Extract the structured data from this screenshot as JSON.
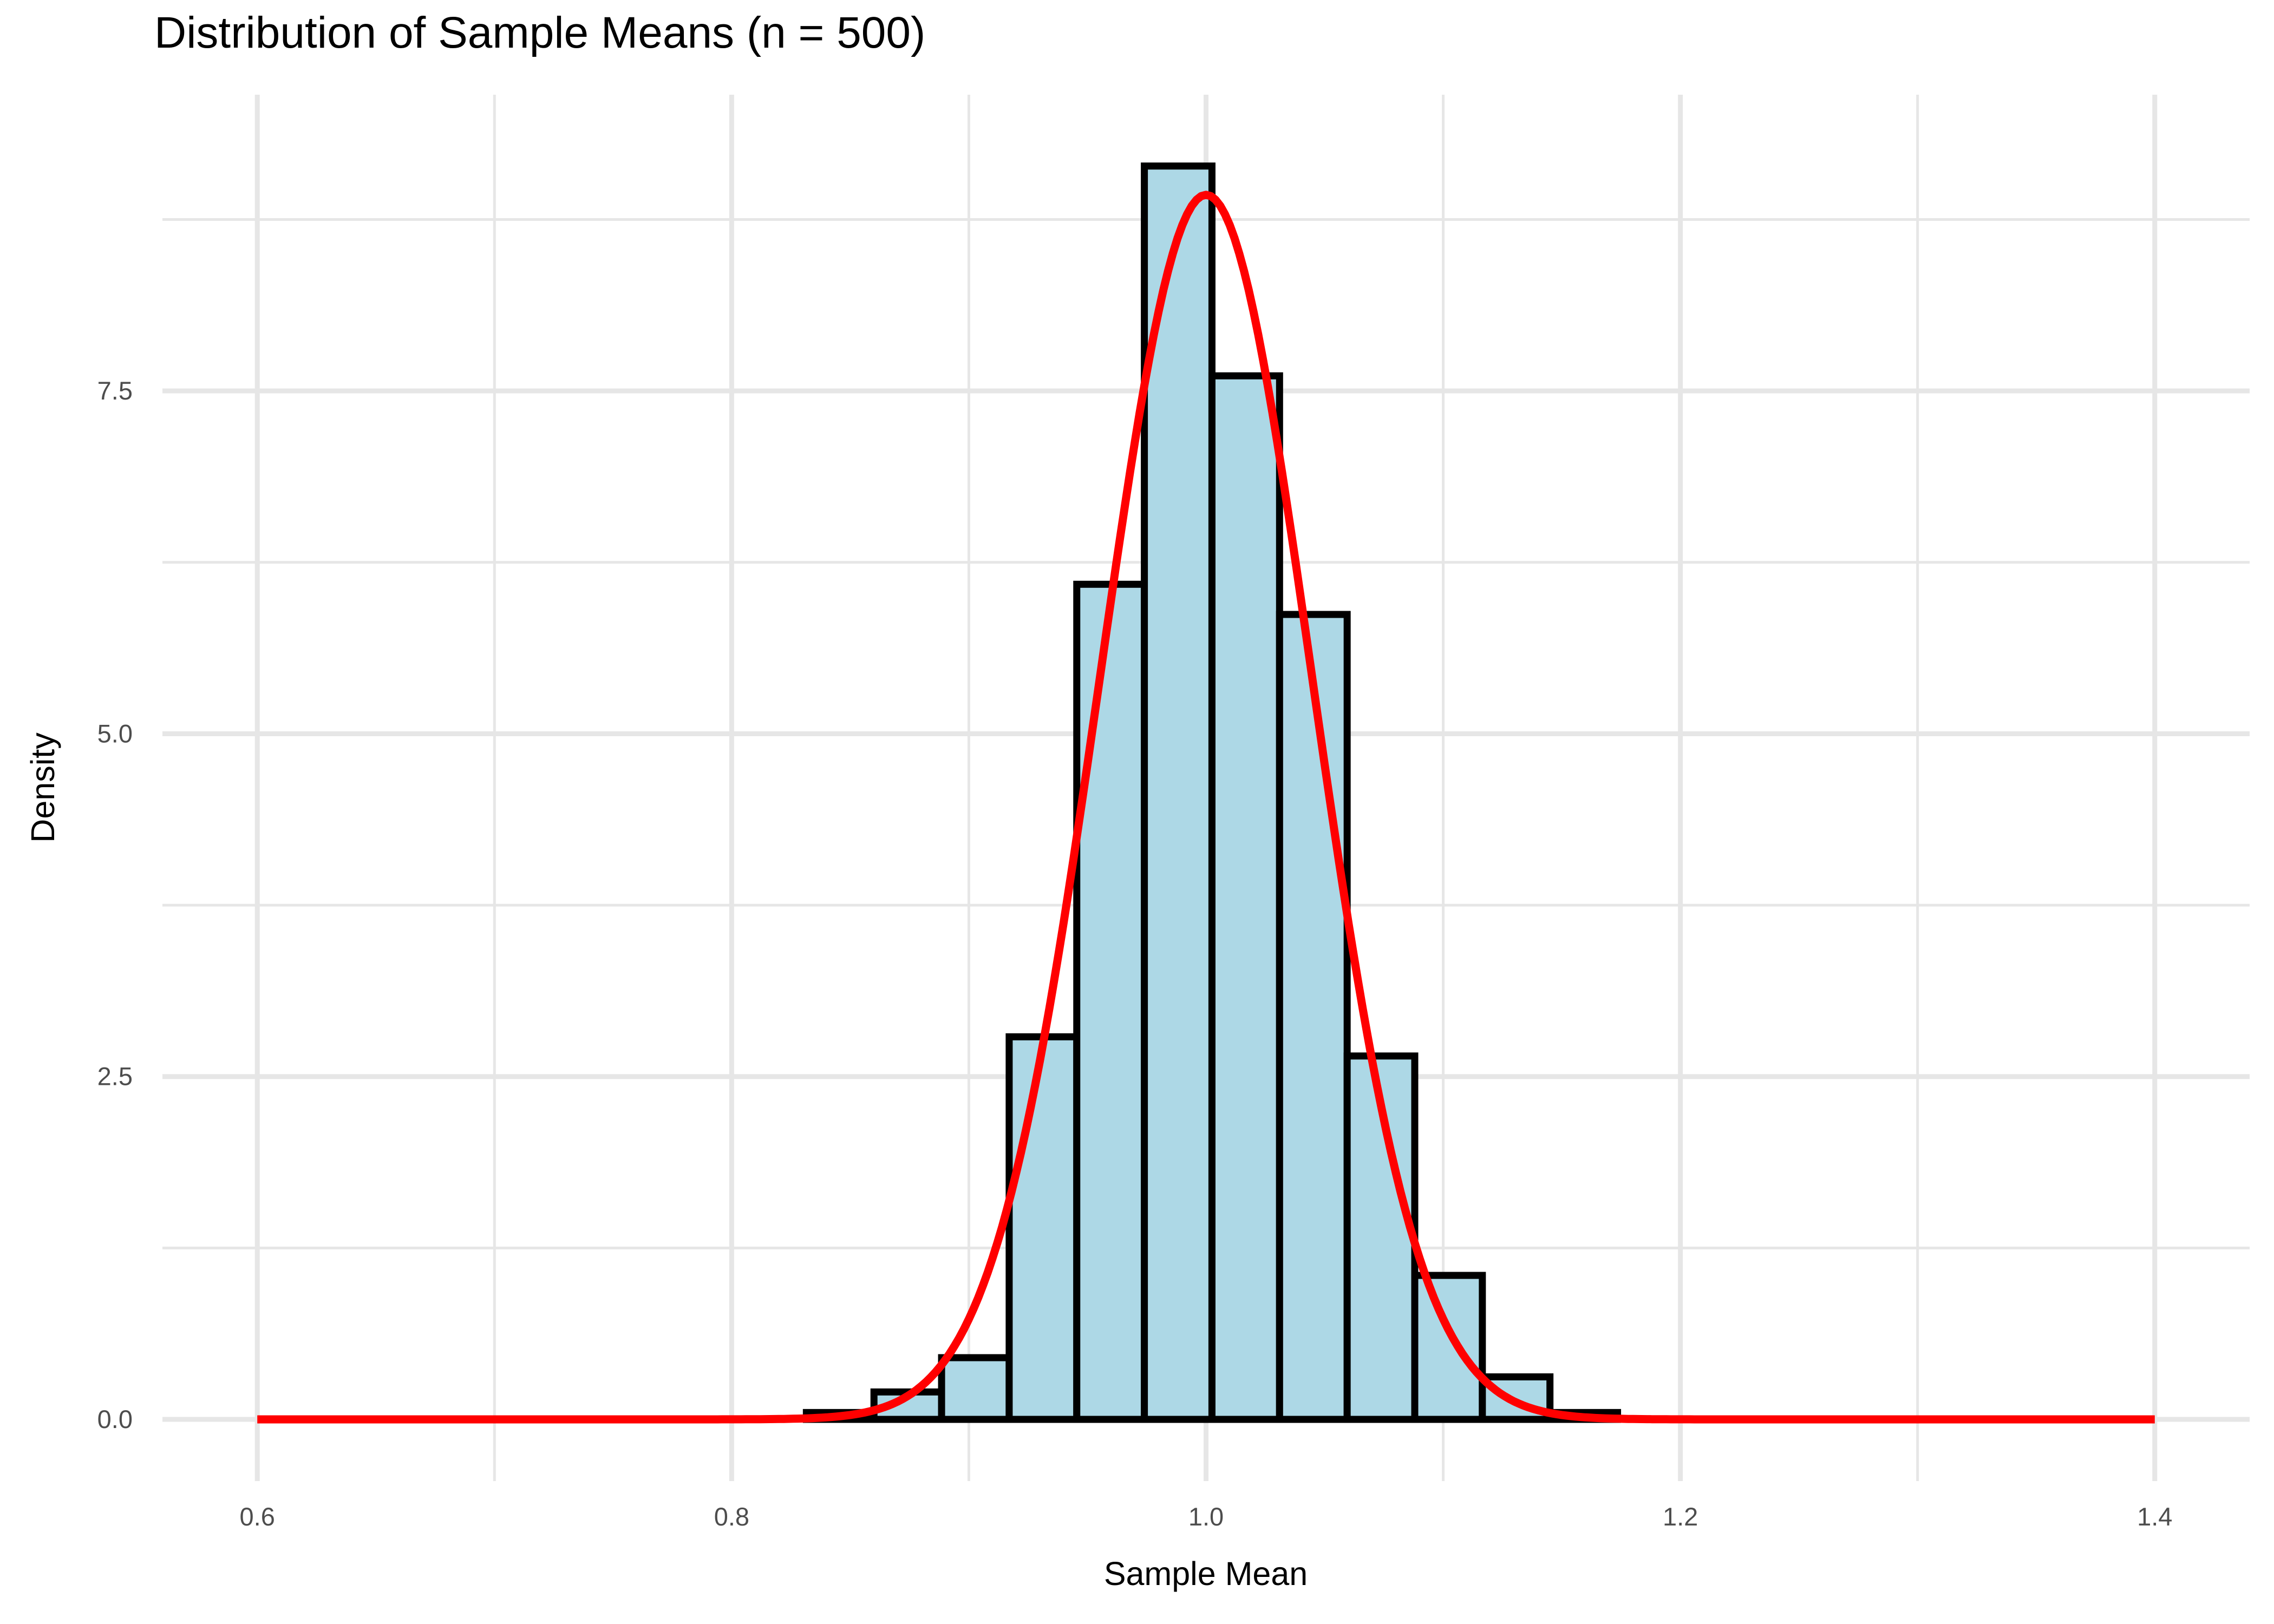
{
  "title": "Distribution of Sample Means (n = 500)",
  "chart_data": {
    "type": "bar",
    "subtype": "histogram_with_density_curve",
    "title": "Distribution of Sample Means (n = 500)",
    "xlabel": "Sample Mean",
    "ylabel": "Density",
    "xlim": [
      0.56,
      1.44
    ],
    "ylim": [
      -0.45,
      9.66
    ],
    "x_major_ticks": [
      0.6,
      0.8,
      1.0,
      1.2,
      1.4
    ],
    "x_tick_labels": [
      "0.6",
      "0.8",
      "1.0",
      "1.2",
      "1.4"
    ],
    "x_minor_ticks": [
      0.7,
      0.9,
      1.1,
      1.3
    ],
    "y_major_ticks": [
      0,
      2.5,
      5,
      7.5
    ],
    "y_tick_labels": [
      "0.0",
      "2.5",
      "5.0",
      "7.5"
    ],
    "y_minor_ticks": [
      1.25,
      3.75,
      6.25,
      8.75
    ],
    "grid": "major_and_minor",
    "legend_position": "none",
    "histogram": {
      "bin_width": 0.0285,
      "fill": "#ADD8E6",
      "stroke": "#000000",
      "bins": [
        {
          "x0": 0.8315,
          "x1": 0.86,
          "density": 0.05
        },
        {
          "x0": 0.86,
          "x1": 0.8885,
          "density": 0.2
        },
        {
          "x0": 0.8885,
          "x1": 0.917,
          "density": 0.45
        },
        {
          "x0": 0.917,
          "x1": 0.9455,
          "density": 2.79
        },
        {
          "x0": 0.9455,
          "x1": 0.974,
          "density": 6.09
        },
        {
          "x0": 0.974,
          "x1": 1.0025,
          "density": 9.14
        },
        {
          "x0": 1.0025,
          "x1": 1.031,
          "density": 7.61
        },
        {
          "x0": 1.031,
          "x1": 1.0595,
          "density": 5.87
        },
        {
          "x0": 1.0595,
          "x1": 1.088,
          "density": 2.65
        },
        {
          "x0": 1.088,
          "x1": 1.1165,
          "density": 1.05
        },
        {
          "x0": 1.1165,
          "x1": 1.145,
          "density": 0.31
        },
        {
          "x0": 1.145,
          "x1": 1.1735,
          "density": 0.05
        }
      ]
    },
    "curve": {
      "shape": "normal",
      "mean": 1.0,
      "sd": 0.0447,
      "peak_density": 8.93,
      "x_start": 0.6,
      "x_end": 1.4,
      "color": "#FF0000"
    },
    "colors": {
      "background": "#FFFFFF",
      "grid": "#E6E6E6",
      "tick_text": "#4D4D4D",
      "axis_title_text": "#000000",
      "title_text": "#000000"
    }
  }
}
